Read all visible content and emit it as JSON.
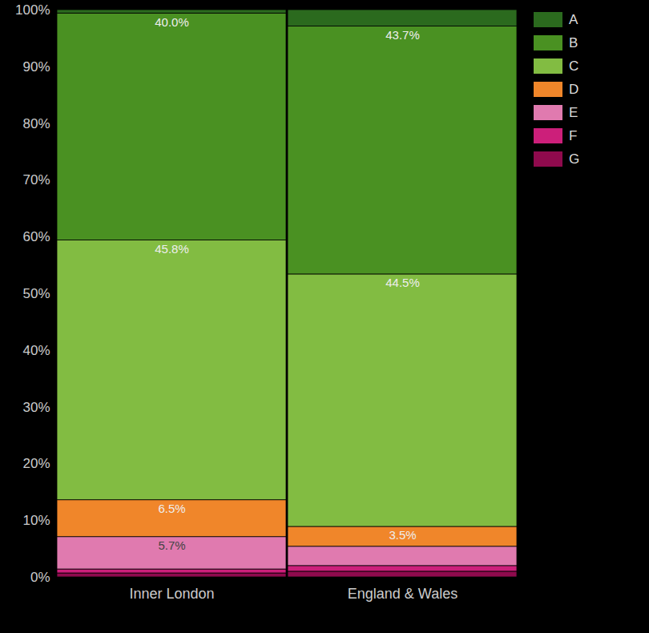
{
  "chart_data": {
    "type": "bar",
    "stacked": true,
    "data_labels": true,
    "grid": false,
    "legend": "top-right",
    "categories": [
      "Inner London",
      "England & Wales"
    ],
    "ylim": [
      0,
      100
    ],
    "yticks": [
      {
        "value": 0,
        "label": "0%"
      },
      {
        "value": 10,
        "label": "10%"
      },
      {
        "value": 20,
        "label": "20%"
      },
      {
        "value": 30,
        "label": "30%"
      },
      {
        "value": 40,
        "label": "40%"
      },
      {
        "value": 50,
        "label": "50%"
      },
      {
        "value": 60,
        "label": "60%"
      },
      {
        "value": 70,
        "label": "70%"
      },
      {
        "value": 80,
        "label": "80%"
      },
      {
        "value": 90,
        "label": "90%"
      },
      {
        "value": 100,
        "label": "100%"
      }
    ],
    "series": [
      {
        "name": "A",
        "color": "#2b6a1e",
        "values": [
          0.6,
          2.9
        ],
        "value_labels": [
          null,
          null
        ]
      },
      {
        "name": "B",
        "color": "#4a9122",
        "values": [
          40.0,
          43.7
        ],
        "value_labels": [
          "40.0%",
          "43.7%"
        ]
      },
      {
        "name": "C",
        "color": "#82bc42",
        "values": [
          45.8,
          44.5
        ],
        "value_labels": [
          "45.8%",
          "44.5%"
        ]
      },
      {
        "name": "D",
        "color": "#f0862a",
        "values": [
          6.5,
          3.5
        ],
        "value_labels": [
          "6.5%",
          "3.5%"
        ]
      },
      {
        "name": "E",
        "color": "#e07aaf",
        "values": [
          5.7,
          3.4
        ],
        "value_labels": [
          "5.7%",
          null
        ]
      },
      {
        "name": "F",
        "color": "#cc1f7a",
        "values": [
          0.7,
          1.0
        ],
        "value_labels": [
          null,
          null
        ]
      },
      {
        "name": "G",
        "color": "#8f0a4d",
        "values": [
          0.7,
          1.0
        ],
        "value_labels": [
          null,
          null
        ]
      }
    ]
  }
}
